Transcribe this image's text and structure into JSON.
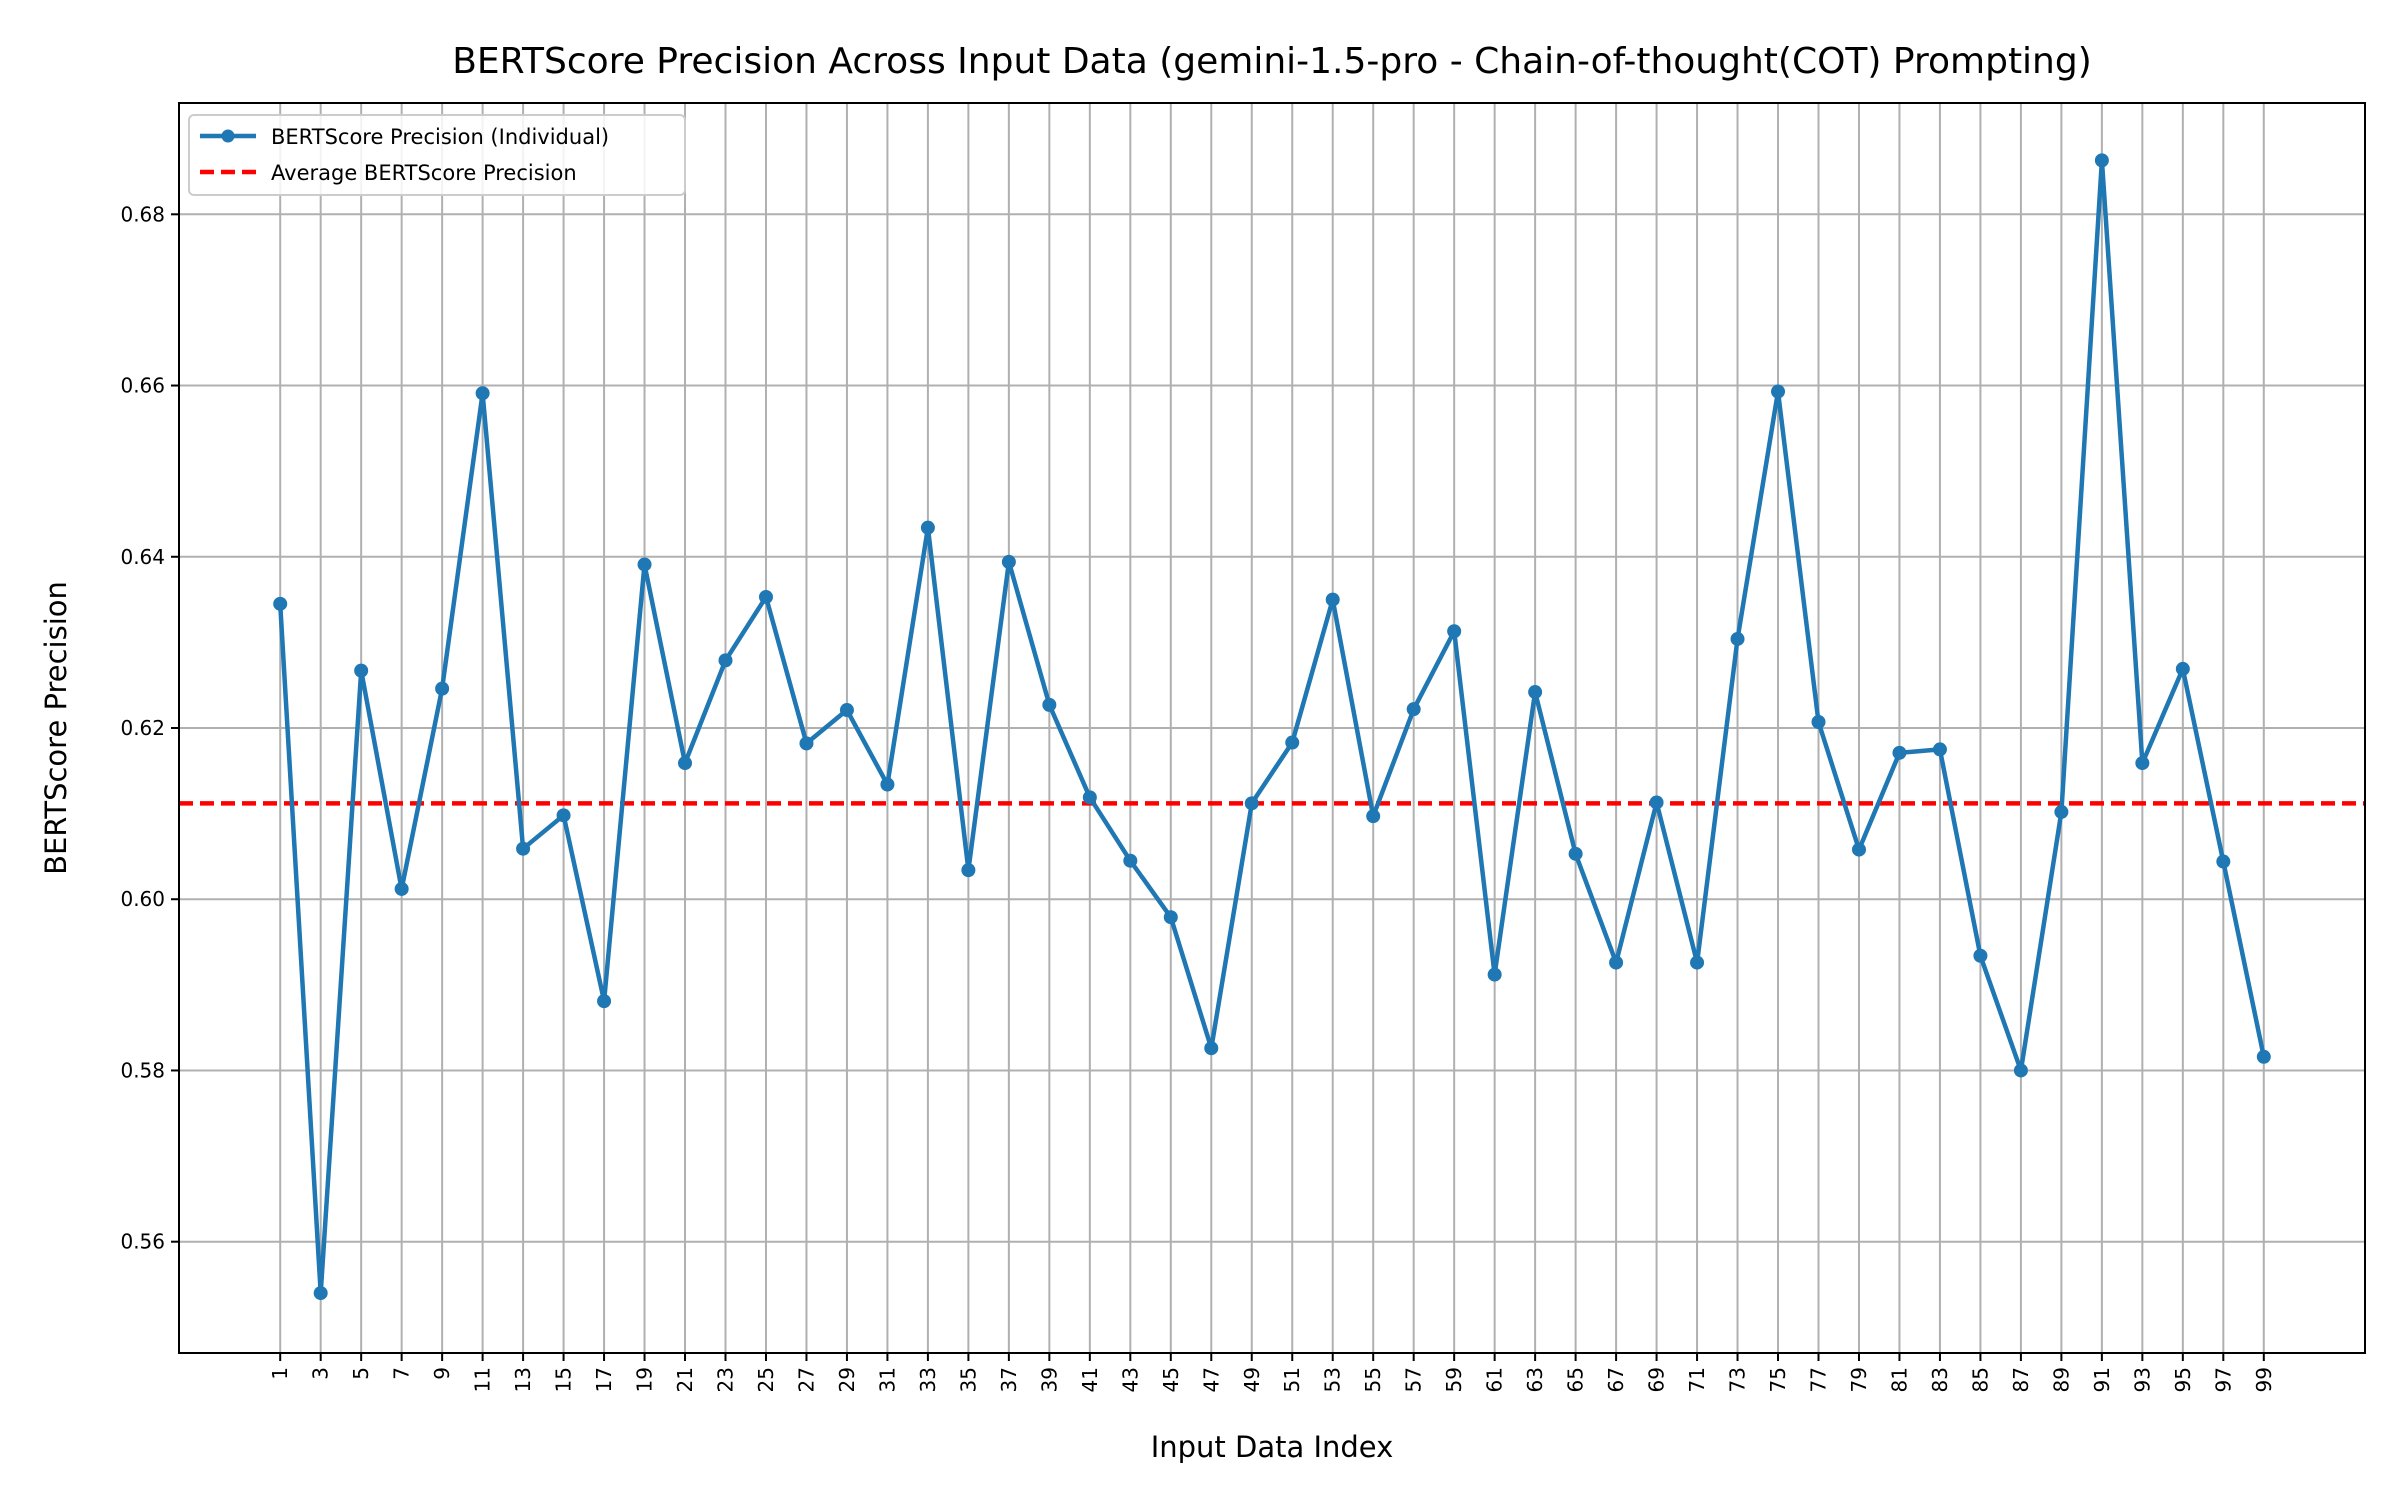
{
  "chart_data": {
    "type": "line",
    "title": "BERTScore Precision Across Input Data (gemini-1.5-pro - Chain-of-thought(COT) Prompting)",
    "xlabel": "Input Data Index",
    "ylabel": "BERTScore Precision",
    "xlim": [
      -4,
      104
    ],
    "ylim": [
      0.547,
      0.693
    ],
    "yticks": [
      0.56,
      0.58,
      0.6,
      0.62,
      0.64,
      0.66,
      0.68
    ],
    "ytick_labels": [
      "0.56",
      "0.58",
      "0.60",
      "0.62",
      "0.64",
      "0.66",
      "0.68"
    ],
    "xticks": [
      1,
      3,
      5,
      7,
      9,
      11,
      13,
      15,
      17,
      19,
      21,
      23,
      25,
      27,
      29,
      31,
      33,
      35,
      37,
      39,
      41,
      43,
      45,
      47,
      49,
      51,
      53,
      55,
      57,
      59,
      61,
      63,
      65,
      67,
      69,
      71,
      73,
      75,
      77,
      79,
      81,
      83,
      85,
      87,
      89,
      91,
      93,
      95,
      97,
      99
    ],
    "xtick_labels": [
      "1",
      "3",
      "5",
      "7",
      "9",
      "11",
      "13",
      "15",
      "17",
      "19",
      "21",
      "23",
      "25",
      "27",
      "29",
      "31",
      "33",
      "35",
      "37",
      "39",
      "41",
      "43",
      "45",
      "47",
      "49",
      "51",
      "53",
      "55",
      "57",
      "59",
      "61",
      "63",
      "65",
      "67",
      "69",
      "71",
      "73",
      "75",
      "77",
      "79",
      "81",
      "83",
      "85",
      "87",
      "89",
      "91",
      "93",
      "95",
      "97",
      "99"
    ],
    "grid": true,
    "legend_position": "top-left",
    "series": [
      {
        "name": "BERTScore Precision (Individual)",
        "color": "#1f77b4",
        "style": "solid-with-markers",
        "x": [
          1,
          3,
          5,
          7,
          9,
          11,
          13,
          15,
          17,
          19,
          21,
          23,
          25,
          27,
          29,
          31,
          33,
          35,
          37,
          39,
          41,
          43,
          45,
          47,
          49,
          51,
          53,
          55,
          57,
          59,
          61,
          63,
          65,
          67,
          69,
          71,
          73,
          75,
          77,
          79,
          81,
          83,
          85,
          87,
          89,
          91,
          93,
          95,
          97,
          99
        ],
        "y": [
          0.6345,
          0.554,
          0.6267,
          0.6012,
          0.6246,
          0.6591,
          0.6059,
          0.6098,
          0.5881,
          0.6391,
          0.6159,
          0.6279,
          0.6353,
          0.6182,
          0.6221,
          0.6134,
          0.6434,
          0.6034,
          0.6394,
          0.6227,
          0.6119,
          0.6045,
          0.5979,
          0.5826,
          0.6112,
          0.6183,
          0.635,
          0.6097,
          0.6222,
          0.6313,
          0.5912,
          0.6242,
          0.6053,
          0.5926,
          0.6113,
          0.5926,
          0.6304,
          0.6593,
          0.6207,
          0.6058,
          0.6171,
          0.6175,
          0.5934,
          0.58,
          0.6102,
          0.6863,
          0.6159,
          0.6269,
          0.6044,
          0.5816
        ]
      },
      {
        "name": "Average BERTScore Precision",
        "color": "#ff0000",
        "style": "dashed",
        "y": 0.6112
      }
    ]
  }
}
